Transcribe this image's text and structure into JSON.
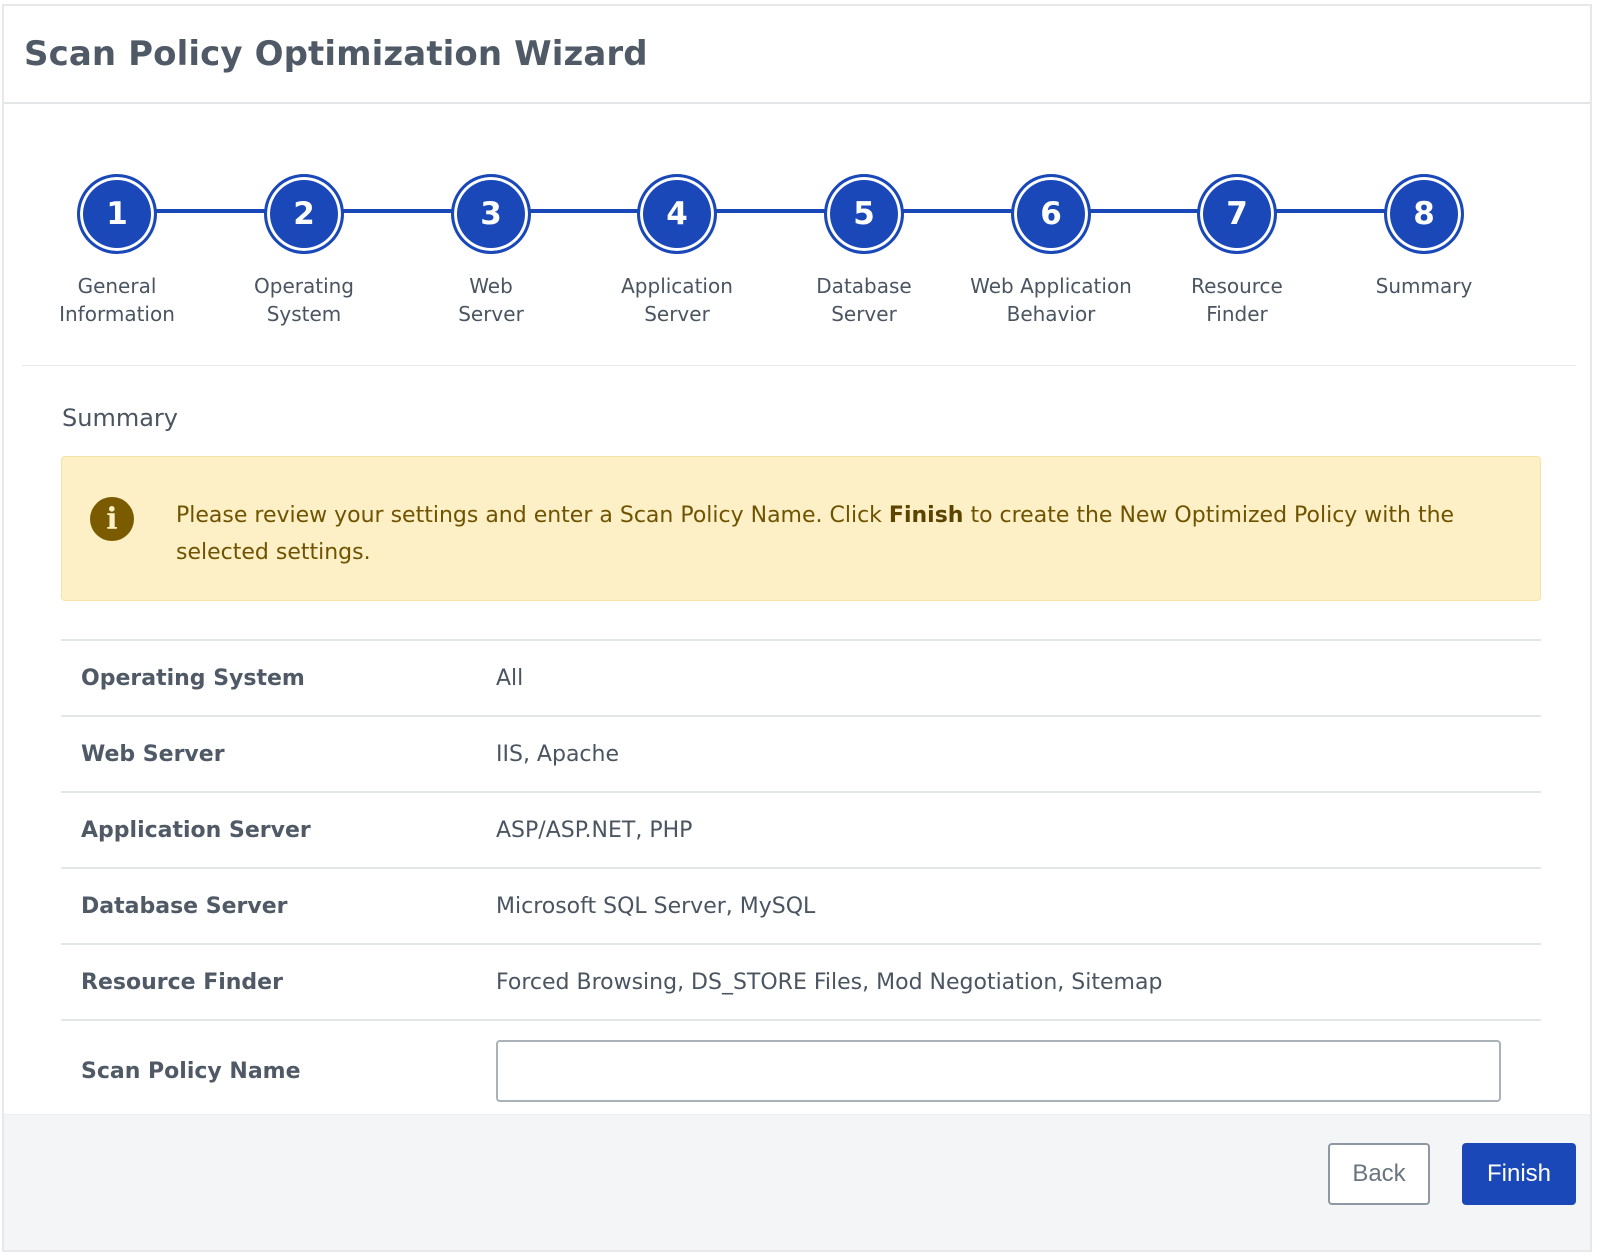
{
  "window": {
    "title": "Scan Policy Optimization Wizard"
  },
  "colors": {
    "accent": "#1a48b8",
    "warning_bg": "#fdf0c6",
    "warning_text": "#6f5300"
  },
  "steps": [
    {
      "number": "1",
      "label": "General\nInformation"
    },
    {
      "number": "2",
      "label": "Operating\nSystem"
    },
    {
      "number": "3",
      "label": "Web\nServer"
    },
    {
      "number": "4",
      "label": "Application\nServer"
    },
    {
      "number": "5",
      "label": "Database\nServer"
    },
    {
      "number": "6",
      "label": "Web Application\nBehavior"
    },
    {
      "number": "7",
      "label": "Resource\nFinder"
    },
    {
      "number": "8",
      "label": "Summary"
    }
  ],
  "summary": {
    "title": "Summary",
    "info": {
      "icon": "info-icon",
      "text_before": "Please review your settings and enter a Scan Policy Name. Click ",
      "text_bold": "Finish",
      "text_after": " to create the New Optimized Policy with the selected settings."
    },
    "rows": [
      {
        "label": "Operating System",
        "value": "All"
      },
      {
        "label": "Web Server",
        "value": "IIS, Apache"
      },
      {
        "label": "Application Server",
        "value": "ASP/ASP.NET, PHP"
      },
      {
        "label": "Database Server",
        "value": "Microsoft SQL Server, MySQL"
      },
      {
        "label": "Resource Finder",
        "value": "Forced Browsing, DS_STORE Files, Mod Negotiation, Sitemap"
      }
    ],
    "policy_name": {
      "label": "Scan Policy Name",
      "value": "",
      "placeholder": ""
    }
  },
  "footer": {
    "back_label": "Back",
    "finish_label": "Finish"
  }
}
